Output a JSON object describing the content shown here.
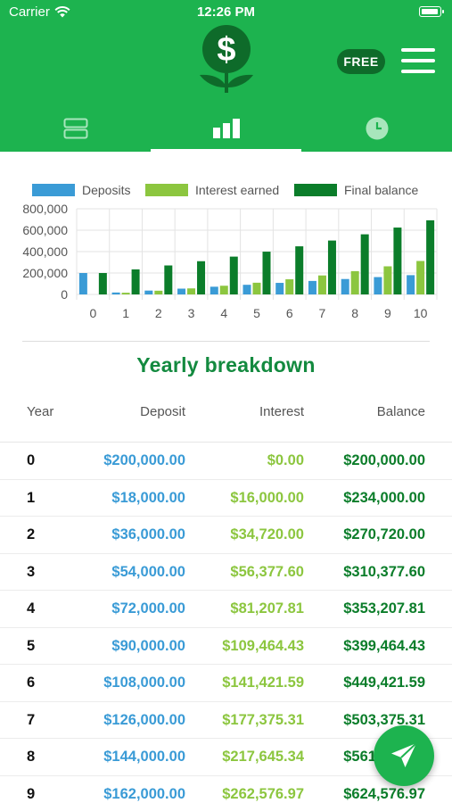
{
  "status_bar": {
    "carrier": "Carrier",
    "time": "12:26 PM",
    "battery_level": 0.9
  },
  "header": {
    "free_label": "FREE",
    "logo_icon": "dollar-plant-icon",
    "menu_icon": "hamburger-menu-icon"
  },
  "tabs": [
    {
      "icon": "list-rows-icon",
      "active": false
    },
    {
      "icon": "bar-chart-icon",
      "active": true
    },
    {
      "icon": "clock-icon",
      "active": false
    }
  ],
  "colors": {
    "deposits": "#3a9bd6",
    "interest": "#8cc63f",
    "balance": "#0b7d2a",
    "brand": "#1db34f"
  },
  "chart_data": {
    "type": "bar",
    "categories": [
      "0",
      "1",
      "2",
      "3",
      "4",
      "5",
      "6",
      "7",
      "8",
      "9",
      "10"
    ],
    "series": [
      {
        "name": "Deposits",
        "values": [
          200000,
          18000,
          36000,
          54000,
          72000,
          90000,
          108000,
          126000,
          144000,
          162000,
          180000
        ]
      },
      {
        "name": "Interest earned",
        "values": [
          0,
          16000,
          34720,
          56377.6,
          81207.81,
          109464.43,
          141421.59,
          177375.31,
          217645.34,
          262576.97,
          312500
        ]
      },
      {
        "name": "Final balance",
        "values": [
          200000,
          234000,
          270720,
          310377.6,
          353207.81,
          399464.43,
          449421.59,
          503375.31,
          561645.34,
          624576.97,
          692500
        ]
      }
    ],
    "yticks": [
      "800,000",
      "600,000",
      "400,000",
      "200,000",
      "0"
    ],
    "ylim": [
      0,
      800000
    ],
    "legend_position": "top",
    "grid": true
  },
  "breakdown": {
    "title": "Yearly breakdown",
    "headers": {
      "year": "Year",
      "deposit": "Deposit",
      "interest": "Interest",
      "balance": "Balance"
    },
    "rows": [
      {
        "year": "0",
        "deposit": "$200,000.00",
        "interest": "$0.00",
        "balance": "$200,000.00"
      },
      {
        "year": "1",
        "deposit": "$18,000.00",
        "interest": "$16,000.00",
        "balance": "$234,000.00"
      },
      {
        "year": "2",
        "deposit": "$36,000.00",
        "interest": "$34,720.00",
        "balance": "$270,720.00"
      },
      {
        "year": "3",
        "deposit": "$54,000.00",
        "interest": "$56,377.60",
        "balance": "$310,377.60"
      },
      {
        "year": "4",
        "deposit": "$72,000.00",
        "interest": "$81,207.81",
        "balance": "$353,207.81"
      },
      {
        "year": "5",
        "deposit": "$90,000.00",
        "interest": "$109,464.43",
        "balance": "$399,464.43"
      },
      {
        "year": "6",
        "deposit": "$108,000.00",
        "interest": "$141,421.59",
        "balance": "$449,421.59"
      },
      {
        "year": "7",
        "deposit": "$126,000.00",
        "interest": "$177,375.31",
        "balance": "$503,375.31"
      },
      {
        "year": "8",
        "deposit": "$144,000.00",
        "interest": "$217,645.34",
        "balance": "$561,645.34"
      },
      {
        "year": "9",
        "deposit": "$162,000.00",
        "interest": "$262,576.97",
        "balance": "$624,576.97"
      }
    ]
  },
  "fab": {
    "icon": "send-icon"
  }
}
